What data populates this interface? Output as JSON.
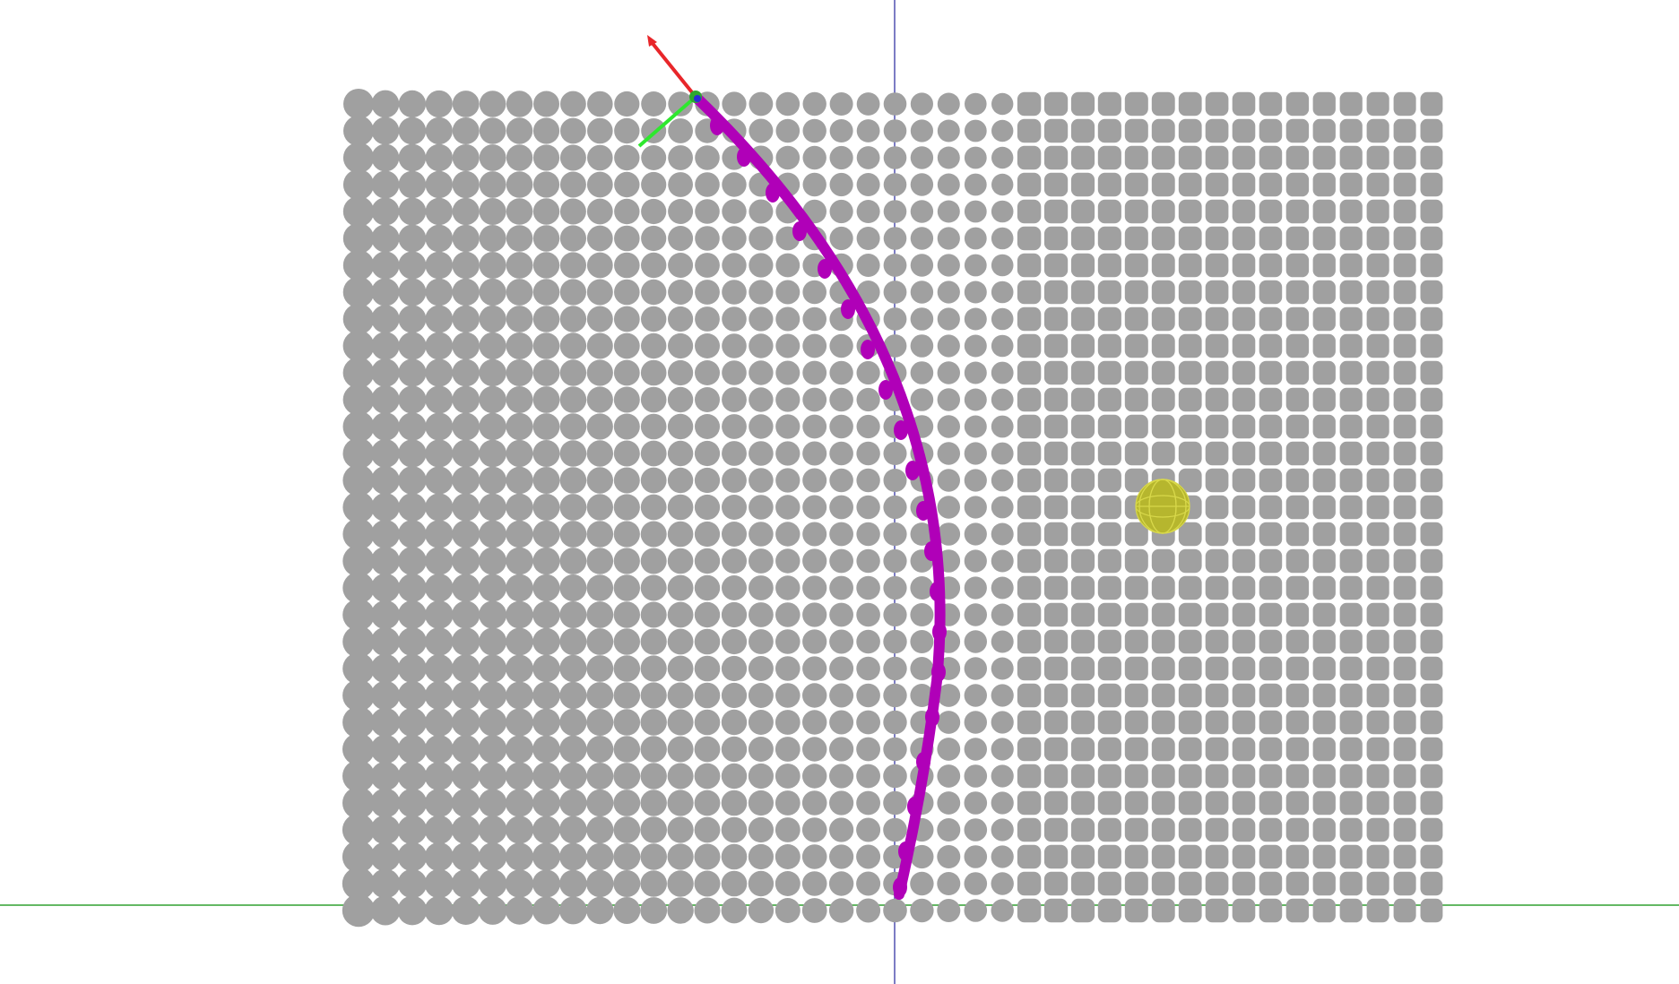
{
  "colors": {
    "background": "#ffffff",
    "grid_node": "#a0a0a0",
    "path": "#b000b8",
    "target": "#b6b62e",
    "target_wire": "#d8d84a",
    "axis_x": "#e8262a",
    "axis_y": "#2ee82e",
    "axis_z": "#2a2ad8",
    "world_axis_vertical": "#5050b0",
    "world_axis_horizontal": "#30a030"
  },
  "scene": {
    "grid": {
      "columns": 41,
      "rows": 31
    },
    "icons": {
      "target": "wireframe-sphere-icon",
      "gizmo": "xyz-axes-gizmo-icon"
    }
  }
}
